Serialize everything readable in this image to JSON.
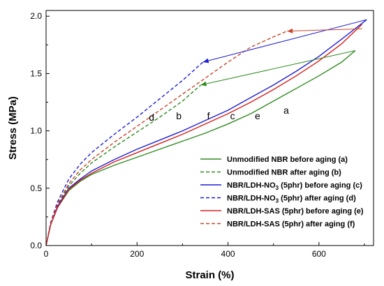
{
  "chart_data": {
    "type": "line",
    "xlabel": "Strain (%)",
    "ylabel": "Stress (MPa)",
    "xlim": [
      0,
      720
    ],
    "ylim": [
      0,
      2.05
    ],
    "x_ticks": [
      0,
      200,
      400,
      600
    ],
    "y_ticks": [
      0.0,
      0.5,
      1.0,
      1.5,
      2.0
    ],
    "x_tick_labels": [
      "0",
      "200",
      "400",
      "600"
    ],
    "y_tick_labels": [
      "0.0",
      "0.5",
      "1.0",
      "1.5",
      "2.0"
    ],
    "grid": false,
    "legend_position": "bottom-right",
    "series": [
      {
        "name": "Unmodified NBR before aging (a)",
        "color": "#2e8b1f",
        "dash": "solid",
        "points": [
          [
            0,
            0
          ],
          [
            10,
            0.18
          ],
          [
            25,
            0.33
          ],
          [
            50,
            0.48
          ],
          [
            75,
            0.56
          ],
          [
            100,
            0.62
          ],
          [
            150,
            0.7
          ],
          [
            200,
            0.77
          ],
          [
            250,
            0.84
          ],
          [
            300,
            0.91
          ],
          [
            350,
            0.98
          ],
          [
            400,
            1.06
          ],
          [
            450,
            1.15
          ],
          [
            500,
            1.26
          ],
          [
            550,
            1.37
          ],
          [
            600,
            1.48
          ],
          [
            650,
            1.6
          ],
          [
            680,
            1.7
          ]
        ]
      },
      {
        "name": "Unmodified NBR after aging (b)",
        "color": "#2e8b1f",
        "dash": "dashed",
        "points": [
          [
            0,
            0
          ],
          [
            10,
            0.19
          ],
          [
            25,
            0.35
          ],
          [
            50,
            0.52
          ],
          [
            75,
            0.63
          ],
          [
            100,
            0.72
          ],
          [
            150,
            0.86
          ],
          [
            200,
            0.99
          ],
          [
            250,
            1.12
          ],
          [
            300,
            1.26
          ],
          [
            340,
            1.4
          ]
        ]
      },
      {
        "name": "NBR/LDH-NO3 (5phr) before aging (c)",
        "color": "#1f1fd6",
        "dash": "solid",
        "points": [
          [
            0,
            0
          ],
          [
            10,
            0.18
          ],
          [
            25,
            0.34
          ],
          [
            50,
            0.5
          ],
          [
            75,
            0.58
          ],
          [
            100,
            0.65
          ],
          [
            150,
            0.75
          ],
          [
            200,
            0.84
          ],
          [
            250,
            0.92
          ],
          [
            300,
            1.0
          ],
          [
            350,
            1.09
          ],
          [
            400,
            1.18
          ],
          [
            450,
            1.29
          ],
          [
            500,
            1.4
          ],
          [
            550,
            1.52
          ],
          [
            600,
            1.65
          ],
          [
            650,
            1.8
          ],
          [
            705,
            1.97
          ]
        ]
      },
      {
        "name": "NBR/LDH-NO3 (5phr) after aging (d)",
        "color": "#1f1fd6",
        "dash": "dashed",
        "points": [
          [
            0,
            0
          ],
          [
            10,
            0.2
          ],
          [
            25,
            0.38
          ],
          [
            50,
            0.58
          ],
          [
            75,
            0.71
          ],
          [
            100,
            0.81
          ],
          [
            150,
            0.97
          ],
          [
            200,
            1.12
          ],
          [
            250,
            1.28
          ],
          [
            300,
            1.44
          ],
          [
            345,
            1.6
          ]
        ]
      },
      {
        "name": "NBR/LDH-SAS (5phr) before aging (e)",
        "color": "#d42020",
        "dash": "solid",
        "points": [
          [
            0,
            0
          ],
          [
            10,
            0.18
          ],
          [
            25,
            0.33
          ],
          [
            50,
            0.49
          ],
          [
            75,
            0.57
          ],
          [
            100,
            0.63
          ],
          [
            150,
            0.73
          ],
          [
            200,
            0.81
          ],
          [
            250,
            0.89
          ],
          [
            300,
            0.97
          ],
          [
            350,
            1.06
          ],
          [
            400,
            1.15
          ],
          [
            450,
            1.25
          ],
          [
            500,
            1.36
          ],
          [
            550,
            1.48
          ],
          [
            600,
            1.61
          ],
          [
            650,
            1.76
          ],
          [
            695,
            1.93
          ]
        ]
      },
      {
        "name": "NBR/LDH-SAS (5phr) after aging (f)",
        "color": "#c8452a",
        "dash": "dashed",
        "points": [
          [
            0,
            0
          ],
          [
            10,
            0.19
          ],
          [
            25,
            0.36
          ],
          [
            50,
            0.54
          ],
          [
            75,
            0.66
          ],
          [
            100,
            0.75
          ],
          [
            150,
            0.9
          ],
          [
            200,
            1.04
          ],
          [
            250,
            1.18
          ],
          [
            300,
            1.32
          ],
          [
            350,
            1.46
          ],
          [
            400,
            1.6
          ],
          [
            450,
            1.73
          ],
          [
            500,
            1.82
          ],
          [
            530,
            1.87
          ]
        ]
      }
    ],
    "legend_label_parts": [
      {
        "before": "Unmodified NBR before aging (a)",
        "sub": "",
        "after": ""
      },
      {
        "before": "Unmodified NBR after aging (b)",
        "sub": "",
        "after": ""
      },
      {
        "before": "NBR/LDH-NO",
        "sub": "3",
        "after": " (5phr) before aging (c)"
      },
      {
        "before": "NBR/LDH-NO",
        "sub": "3",
        "after": " (5phr) after aging (d)"
      },
      {
        "before": "NBR/LDH-SAS  (5phr) before aging (e)",
        "sub": "",
        "after": ""
      },
      {
        "before": "NBR/LDH-SAS  (5phr) after aging (f)",
        "sub": "",
        "after": ""
      }
    ],
    "annotations": [
      {
        "text": "d",
        "x": 232,
        "y": 1.09
      },
      {
        "text": "b",
        "x": 292,
        "y": 1.1
      },
      {
        "text": "f",
        "x": 357,
        "y": 1.1
      },
      {
        "text": "c",
        "x": 410,
        "y": 1.1
      },
      {
        "text": "e",
        "x": 465,
        "y": 1.1
      },
      {
        "text": "a",
        "x": 528,
        "y": 1.15
      }
    ],
    "arrows": [
      {
        "color": "#1f1fd6",
        "from": [
          705,
          1.97
        ],
        "to": [
          345,
          1.6
        ]
      },
      {
        "color": "#2e8b1f",
        "from": [
          680,
          1.7
        ],
        "to": [
          340,
          1.4
        ]
      },
      {
        "color": "#c8452a",
        "from": [
          695,
          1.89
        ],
        "to": [
          530,
          1.87
        ]
      }
    ]
  }
}
